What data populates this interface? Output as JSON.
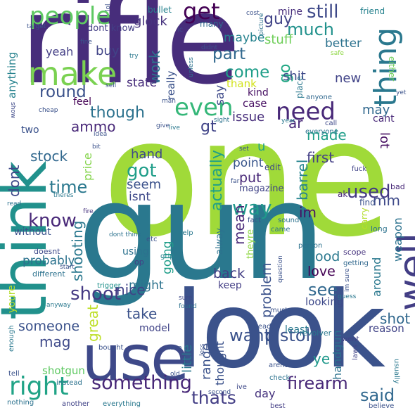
{
  "words": [
    {
      "text": "one",
      "color": "#a0da39"
    },
    {
      "text": "gun",
      "color": "#2a788e"
    },
    {
      "text": "rifle",
      "color": "#472d7b"
    },
    {
      "text": "look",
      "color": "#3b528b"
    },
    {
      "text": "think",
      "color": "#21918c"
    },
    {
      "text": "use",
      "color": "#3e4989"
    },
    {
      "text": "make",
      "color": "#7ad151"
    },
    {
      "text": "well",
      "color": "#433e85"
    },
    {
      "text": "thing",
      "color": "#2a788e"
    },
    {
      "text": "people",
      "color": "#5ec962"
    },
    {
      "text": "right",
      "color": "#20a386"
    },
    {
      "text": "even",
      "color": "#35b779"
    },
    {
      "text": "need",
      "color": "#482878"
    },
    {
      "text": "something",
      "color": "#482878"
    },
    {
      "text": "get",
      "color": "#440154"
    },
    {
      "text": "want",
      "color": "#3b528b"
    },
    {
      "text": "pistol",
      "color": "#3b528b"
    },
    {
      "text": "firearm",
      "color": "#482878"
    },
    {
      "text": "said",
      "color": "#31688e"
    },
    {
      "text": "thats",
      "color": "#433e85"
    },
    {
      "text": "used",
      "color": "#443983"
    },
    {
      "text": "way",
      "color": "#1f988b"
    },
    {
      "text": "know",
      "color": "#482878"
    },
    {
      "text": "shoot",
      "color": "#443983"
    },
    {
      "text": "got",
      "color": "#1f9e89"
    },
    {
      "text": "time",
      "color": "#2a788e"
    },
    {
      "text": "come",
      "color": "#1f9e89"
    },
    {
      "text": "part",
      "color": "#31688e"
    },
    {
      "text": "round",
      "color": "#3b528b"
    },
    {
      "text": "still",
      "color": "#3e4989"
    },
    {
      "text": "much",
      "color": "#21918c"
    },
    {
      "text": "guy",
      "color": "#404387"
    },
    {
      "text": "stuff",
      "color": "#6ece58"
    },
    {
      "text": "maybe",
      "color": "#26828e"
    },
    {
      "text": "better",
      "color": "#2c728e"
    },
    {
      "text": "though",
      "color": "#2c728e"
    },
    {
      "text": "ammo",
      "color": "#482878"
    },
    {
      "text": "stock",
      "color": "#31688e"
    },
    {
      "text": "dont",
      "color": "#3e4989"
    },
    {
      "text": "see",
      "color": "#31688e"
    },
    {
      "text": "well",
      "color": "#433e85"
    },
    {
      "text": "good",
      "color": "#2a788e"
    },
    {
      "text": "love",
      "color": "#440154"
    },
    {
      "text": "made",
      "color": "#1f9e89"
    },
    {
      "text": "may",
      "color": "#31688e"
    },
    {
      "text": "lot",
      "color": "#471063"
    },
    {
      "text": "ar",
      "color": "#482878"
    },
    {
      "text": "gt",
      "color": "#404387"
    },
    {
      "text": "say",
      "color": "#3e4989"
    },
    {
      "text": "go",
      "color": "#22a884"
    },
    {
      "text": "kind",
      "color": "#471063"
    },
    {
      "text": "thank",
      "color": "#d2e21b"
    },
    {
      "text": "shit",
      "color": "#3e4989"
    },
    {
      "text": "work",
      "color": "#2c728e"
    },
    {
      "text": "really",
      "color": "#3b528b"
    },
    {
      "text": "state",
      "color": "#472d7b"
    },
    {
      "text": "buy",
      "color": "#414487"
    },
    {
      "text": "glock",
      "color": "#46337e"
    },
    {
      "text": "yeah",
      "color": "#433e85"
    },
    {
      "text": "anything",
      "color": "#26828e"
    },
    {
      "text": "actually",
      "color": "#1fa088"
    },
    {
      "text": "barrel",
      "color": "#25848e"
    },
    {
      "text": "mean",
      "color": "#482878"
    },
    {
      "text": "shooting",
      "color": "#2a788e"
    },
    {
      "text": "price",
      "color": "#84d44b"
    },
    {
      "text": "hand",
      "color": "#3e4989"
    },
    {
      "text": "seem",
      "color": "#3b528b"
    },
    {
      "text": "isnt",
      "color": "#3e4989"
    },
    {
      "text": "put",
      "color": "#482878"
    },
    {
      "text": "point",
      "color": "#39568c"
    },
    {
      "text": "first",
      "color": "#433e85"
    },
    {
      "text": "im",
      "color": "#471063"
    },
    {
      "text": "mm",
      "color": "#3e4989"
    },
    {
      "text": "problem",
      "color": "#3b528b"
    },
    {
      "text": "back",
      "color": "#433e85"
    },
    {
      "text": "probably",
      "color": "#2c728e"
    },
    {
      "text": "going",
      "color": "#1f9e89"
    },
    {
      "text": "might",
      "color": "#2c728e"
    },
    {
      "text": "nice",
      "color": "#404387"
    },
    {
      "text": "great",
      "color": "#bddf26"
    },
    {
      "text": "someone",
      "color": "#3b528b"
    },
    {
      "text": "mag",
      "color": "#3e4989"
    },
    {
      "text": "take",
      "color": "#3b528b"
    },
    {
      "text": "little",
      "color": "#2a788e"
    },
    {
      "text": "range",
      "color": "#3b528b"
    },
    {
      "text": "thought",
      "color": "#3b528b"
    },
    {
      "text": "shot",
      "color": "#31688e"
    },
    {
      "text": "ye",
      "color": "#1f988b"
    },
    {
      "text": "handgun",
      "color": "#2c728e"
    },
    {
      "text": "day",
      "color": "#46337e"
    },
    {
      "text": "issue",
      "color": "#472d7b"
    },
    {
      "text": "case",
      "color": "#471063"
    },
    {
      "text": "new",
      "color": "#404387"
    },
    {
      "text": "weapon",
      "color": "#2c728e"
    },
    {
      "text": "around",
      "color": "#2a788e"
    },
    {
      "text": "looking",
      "color": "#3e4989"
    },
    {
      "text": "reason",
      "color": "#404387"
    },
    {
      "text": "shotgun",
      "color": "#5ec962"
    },
    {
      "text": "without",
      "color": "#3b528b"
    },
    {
      "text": "two",
      "color": "#3b528b"
    },
    {
      "text": "feel",
      "color": "#440154"
    },
    {
      "text": "dont know",
      "color": "#433e85"
    },
    {
      "text": "mine",
      "color": "#472d7b"
    },
    {
      "text": "friend",
      "color": "#26828e"
    },
    {
      "text": "bullet",
      "color": "#26828e"
    },
    {
      "text": "many",
      "color": "#31688e"
    },
    {
      "text": "keep",
      "color": "#433e85"
    },
    {
      "text": "cant",
      "color": "#482878"
    },
    {
      "text": "u",
      "color": "#20a386"
    },
    {
      "text": "edit",
      "color": "#3e4989"
    },
    {
      "text": "magazine",
      "color": "#404387"
    },
    {
      "text": "using",
      "color": "#2c728e"
    },
    {
      "text": "alway",
      "color": "#2c728e"
    },
    {
      "text": "theyre",
      "color": "#8fd744"
    },
    {
      "text": "youre",
      "color": "#b5de2b"
    },
    {
      "text": "model",
      "color": "#404387"
    },
    {
      "text": "least",
      "color": "#2a788e"
    },
    {
      "text": "revolver",
      "color": "#2a788e"
    },
    {
      "text": "fuck",
      "color": "#404387"
    },
    {
      "text": "find",
      "color": "#3b528b"
    },
    {
      "text": "ak",
      "color": "#482878"
    },
    {
      "text": "bad",
      "color": "#482878"
    },
    {
      "text": "long",
      "color": "#2c728e"
    },
    {
      "text": "carry",
      "color": "#b5de2b"
    },
    {
      "text": "either",
      "color": "#6ece58"
    },
    {
      "text": "place",
      "color": "#2a788e"
    },
    {
      "text": "anyone",
      "color": "#31688e"
    },
    {
      "text": "everyone",
      "color": "#2c728e"
    },
    {
      "text": "call",
      "color": "#3e4989"
    },
    {
      "text": "year",
      "color": "#2a788e"
    },
    {
      "text": "doesnt",
      "color": "#3e4989"
    },
    {
      "text": "different",
      "color": "#2c728e"
    },
    {
      "text": "trigger",
      "color": "#21918c"
    },
    {
      "text": "grip",
      "color": "#25848e"
    },
    {
      "text": "op",
      "color": "#433e85"
    },
    {
      "text": "etc",
      "color": "#3b528b"
    },
    {
      "text": "help",
      "color": "#2a788e"
    },
    {
      "text": "fact",
      "color": "#3b528b"
    },
    {
      "text": "sound",
      "color": "#2c728e"
    },
    {
      "text": "came",
      "color": "#2c728e"
    },
    {
      "text": "person",
      "color": "#2c728e"
    },
    {
      "text": "scope",
      "color": "#46337e"
    },
    {
      "text": "getting",
      "color": "#31688e"
    },
    {
      "text": "already",
      "color": "#3b528b"
    },
    {
      "text": "must",
      "color": "#3b528b"
    },
    {
      "text": "guess",
      "color": "#2a788e"
    },
    {
      "text": "went",
      "color": "#404387"
    },
    {
      "text": "laws",
      "color": "#404387"
    },
    {
      "text": "check",
      "color": "#2c728e"
    },
    {
      "text": "arent",
      "color": "#3b528b"
    },
    {
      "text": "usually",
      "color": "#2a788e"
    },
    {
      "text": "believe",
      "color": "#3b528b"
    },
    {
      "text": "best",
      "color": "#433e85"
    },
    {
      "text": "second",
      "color": "#3b528b"
    },
    {
      "text": "ive",
      "color": "#3e4989"
    },
    {
      "text": "old",
      "color": "#3b528b"
    },
    {
      "text": "instead",
      "color": "#2c728e"
    },
    {
      "text": "everything",
      "color": "#2a788e"
    },
    {
      "text": "another",
      "color": "#404387"
    },
    {
      "text": "nothing",
      "color": "#2c728e"
    },
    {
      "text": "tell",
      "color": "#3b528b"
    },
    {
      "text": "enough",
      "color": "#2a788e"
    },
    {
      "text": "bought",
      "color": "#3b528b"
    },
    {
      "text": "less",
      "color": "#3b528b"
    },
    {
      "text": "done",
      "color": "#3b528b"
    },
    {
      "text": "found",
      "color": "#2c728e"
    },
    {
      "text": "sure",
      "color": "#3e4989"
    },
    {
      "text": "im sure",
      "color": "#3b528b"
    },
    {
      "text": "question",
      "color": "#3b528b"
    },
    {
      "text": "start",
      "color": "#3b528b"
    },
    {
      "text": "anyway",
      "color": "#2a788e"
    },
    {
      "text": "dont think",
      "color": "#2c728e"
    },
    {
      "text": "far",
      "color": "#3b528b"
    },
    {
      "text": "set",
      "color": "#3b528b"
    },
    {
      "text": "fire",
      "color": "#46337e"
    },
    {
      "text": "read",
      "color": "#2c728e"
    },
    {
      "text": "theres",
      "color": "#2a788e"
    },
    {
      "text": "bit",
      "color": "#3b528b"
    },
    {
      "text": "idea",
      "color": "#3b528b"
    },
    {
      "text": "give",
      "color": "#3b528b"
    },
    {
      "text": "live",
      "color": "#2a788e"
    },
    {
      "text": "sight",
      "color": "#2c728e"
    },
    {
      "text": "cheap",
      "color": "#3b528b"
    },
    {
      "text": "show",
      "color": "#3e4989"
    },
    {
      "text": "man",
      "color": "#3b528b"
    },
    {
      "text": "unless",
      "color": "#2c728e"
    },
    {
      "text": "sell",
      "color": "#3b528b"
    },
    {
      "text": "try",
      "color": "#2a788e"
    },
    {
      "text": "fine",
      "color": "#3b528b"
    },
    {
      "text": "target",
      "color": "#3b528b"
    },
    {
      "text": "lol",
      "color": "#3b528b"
    },
    {
      "text": "ic",
      "color": "#3e4989"
    },
    {
      "text": "didnt",
      "color": "#3b528b"
    },
    {
      "text": "picture",
      "color": "#2c728e"
    },
    {
      "text": "cost",
      "color": "#3b528b"
    },
    {
      "text": "safe",
      "color": "#8fd744"
    },
    {
      "text": "yet",
      "color": "#3b528b"
    }
  ]
}
